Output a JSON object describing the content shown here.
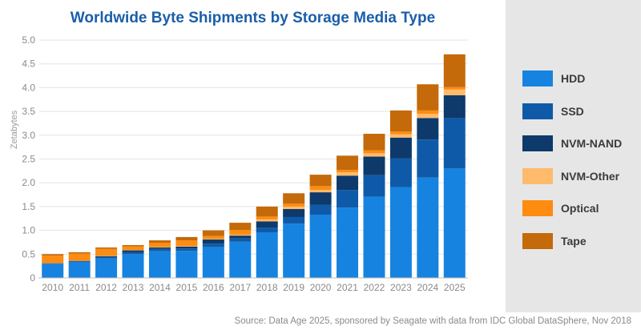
{
  "chart_data": {
    "type": "bar",
    "stacked": true,
    "title": "Worldwide Byte Shipments by Storage Media Type",
    "xlabel": "",
    "ylabel": "Zetabytes",
    "ylim": [
      0,
      5.0
    ],
    "yticks": [
      "0",
      "0.5",
      "1.0",
      "1.5",
      "2.0",
      "2.5",
      "3.0",
      "3.5",
      "4.0",
      "4.5",
      "5.0"
    ],
    "grid": true,
    "legend_position": "right",
    "categories": [
      "2010",
      "2011",
      "2012",
      "2013",
      "2014",
      "2015",
      "2016",
      "2017",
      "2018",
      "2019",
      "2020",
      "2021",
      "2022",
      "2023",
      "2024",
      "2025"
    ],
    "series": [
      {
        "name": "HDD",
        "color": "#1683e0",
        "values": [
          0.29,
          0.33,
          0.41,
          0.5,
          0.56,
          0.57,
          0.65,
          0.76,
          0.96,
          1.14,
          1.33,
          1.48,
          1.71,
          1.91,
          2.11,
          2.3
        ]
      },
      {
        "name": "SSD",
        "color": "#0f5aa8",
        "values": [
          0.01,
          0.02,
          0.03,
          0.04,
          0.05,
          0.05,
          0.07,
          0.07,
          0.1,
          0.14,
          0.21,
          0.37,
          0.45,
          0.6,
          0.8,
          1.06
        ]
      },
      {
        "name": "NVM-NAND",
        "color": "#0d3a6a",
        "values": [
          0.01,
          0.01,
          0.02,
          0.04,
          0.03,
          0.04,
          0.09,
          0.06,
          0.13,
          0.17,
          0.26,
          0.3,
          0.39,
          0.44,
          0.45,
          0.48
        ]
      },
      {
        "name": "NVM-Other",
        "color": "#ffba6b",
        "values": [
          0.01,
          0.01,
          0.01,
          0.01,
          0.01,
          0.01,
          0.01,
          0.02,
          0.04,
          0.05,
          0.05,
          0.07,
          0.07,
          0.07,
          0.09,
          0.12
        ]
      },
      {
        "name": "Optical",
        "color": "#fd8c10",
        "values": [
          0.15,
          0.14,
          0.14,
          0.07,
          0.09,
          0.12,
          0.06,
          0.1,
          0.06,
          0.06,
          0.08,
          0.05,
          0.06,
          0.06,
          0.07,
          0.05
        ]
      },
      {
        "name": "Tape",
        "color": "#c46a0a",
        "values": [
          0.03,
          0.03,
          0.03,
          0.03,
          0.05,
          0.07,
          0.12,
          0.15,
          0.21,
          0.22,
          0.24,
          0.3,
          0.35,
          0.44,
          0.55,
          0.69
        ]
      }
    ]
  },
  "legend": {
    "items": [
      {
        "label": "HDD",
        "color": "#1683e0"
      },
      {
        "label": "SSD",
        "color": "#0f5aa8"
      },
      {
        "label": "NVM-NAND",
        "color": "#0d3a6a"
      },
      {
        "label": "NVM-Other",
        "color": "#ffba6b"
      },
      {
        "label": "Optical",
        "color": "#fd8c10"
      },
      {
        "label": "Tape",
        "color": "#c46a0a"
      }
    ]
  },
  "footer": {
    "source": "Source: Data Age 2025, sponsored by Seagate with data from IDC Global DataSphere, Nov 2018"
  }
}
